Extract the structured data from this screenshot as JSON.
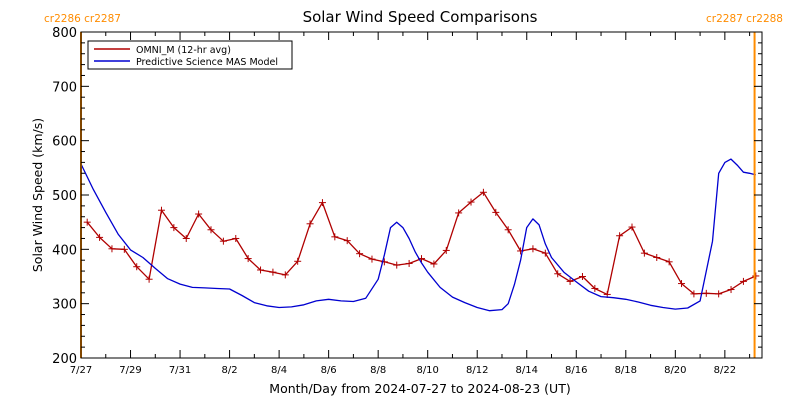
{
  "chart_data": {
    "type": "line",
    "title": "Solar Wind Speed Comparisons",
    "xlabel": "Month/Day from 2024-07-27 to 2024-08-23 (UT)",
    "ylabel": "Solar Wind Speed (km/s)",
    "x_start": "2024-07-27",
    "xlim_days": [
      0,
      27.5
    ],
    "ylim": [
      200,
      800
    ],
    "yticks": [
      200,
      300,
      400,
      500,
      600,
      700,
      800
    ],
    "xticks": [
      {
        "day": 0,
        "label": "7/27"
      },
      {
        "day": 2,
        "label": "7/29"
      },
      {
        "day": 4,
        "label": "7/31"
      },
      {
        "day": 6,
        "label": "8/2"
      },
      {
        "day": 8,
        "label": "8/4"
      },
      {
        "day": 10,
        "label": "8/6"
      },
      {
        "day": 12,
        "label": "8/8"
      },
      {
        "day": 14,
        "label": "8/10"
      },
      {
        "day": 16,
        "label": "8/12"
      },
      {
        "day": 18,
        "label": "8/14"
      },
      {
        "day": 20,
        "label": "8/16"
      },
      {
        "day": 22,
        "label": "8/18"
      },
      {
        "day": 24,
        "label": "8/20"
      },
      {
        "day": 26,
        "label": "8/22"
      }
    ],
    "carrington_markers": [
      {
        "day": 0,
        "label": "cr2286 cr2287",
        "color": "#FF8C00",
        "label_side": "left"
      },
      {
        "day": 27.2,
        "label": "cr2287 cr2288",
        "color": "#FF8C00",
        "label_side": "right"
      }
    ],
    "legend": {
      "position": "top-left"
    },
    "series": [
      {
        "name": "OMNI_M (12-hr avg)",
        "color": "#B00000",
        "marker": "plus",
        "x": [
          0.25,
          0.75,
          1.25,
          1.75,
          2.25,
          2.75,
          3.25,
          3.75,
          4.25,
          4.75,
          5.25,
          5.75,
          6.25,
          6.75,
          7.25,
          7.75,
          8.25,
          8.75,
          9.25,
          9.75,
          10.25,
          10.75,
          11.25,
          11.75,
          12.25,
          12.75,
          13.25,
          13.75,
          14.25,
          14.75,
          15.25,
          15.75,
          16.25,
          16.75,
          17.25,
          17.75,
          18.25,
          18.75,
          19.25,
          19.75,
          20.25,
          20.75,
          21.25,
          21.75,
          22.25,
          22.75,
          23.25,
          23.75,
          24.25,
          24.75,
          25.25,
          25.75,
          26.25,
          26.75,
          27.25
        ],
        "y": [
          450,
          422,
          401,
          400,
          368,
          345,
          472,
          440,
          420,
          465,
          436,
          415,
          420,
          383,
          362,
          358,
          353,
          378,
          447,
          486,
          423,
          416,
          392,
          382,
          377,
          371,
          374,
          383,
          373,
          398,
          467,
          487,
          505,
          468,
          436,
          397,
          401,
          393,
          355,
          341,
          350,
          328,
          317,
          425,
          441,
          393,
          385,
          377,
          337,
          318,
          319,
          318,
          326,
          341,
          351
        ]
      },
      {
        "name": "Predictive Science MAS Model",
        "color": "#0000D0",
        "marker": "none",
        "x": [
          0,
          0.5,
          1,
          1.5,
          2,
          2.5,
          3,
          3.5,
          4,
          4.5,
          5,
          5.5,
          6,
          6.5,
          7,
          7.5,
          8,
          8.5,
          9,
          9.5,
          10,
          10.5,
          11,
          11.5,
          12,
          12.25,
          12.5,
          12.75,
          13,
          13.25,
          13.5,
          13.75,
          14,
          14.5,
          15,
          15.5,
          16,
          16.5,
          17,
          17.25,
          17.5,
          17.75,
          18,
          18.25,
          18.5,
          18.75,
          19,
          19.5,
          20,
          20.5,
          21,
          21.5,
          22,
          22.5,
          23,
          23.5,
          24,
          24.5,
          25,
          25.5,
          25.75,
          26,
          26.25,
          26.5,
          26.75,
          27,
          27.25
        ],
        "y": [
          557,
          510,
          468,
          428,
          399,
          385,
          365,
          346,
          336,
          330,
          329,
          328,
          327,
          315,
          302,
          296,
          293,
          294,
          298,
          305,
          308,
          305,
          304,
          310,
          345,
          390,
          440,
          450,
          440,
          420,
          395,
          375,
          358,
          330,
          312,
          302,
          293,
          287,
          289,
          300,
          335,
          380,
          440,
          456,
          445,
          410,
          385,
          358,
          340,
          323,
          313,
          311,
          308,
          303,
          297,
          293,
          290,
          292,
          305,
          415,
          540,
          560,
          566,
          555,
          542,
          540,
          537
        ]
      }
    ]
  }
}
